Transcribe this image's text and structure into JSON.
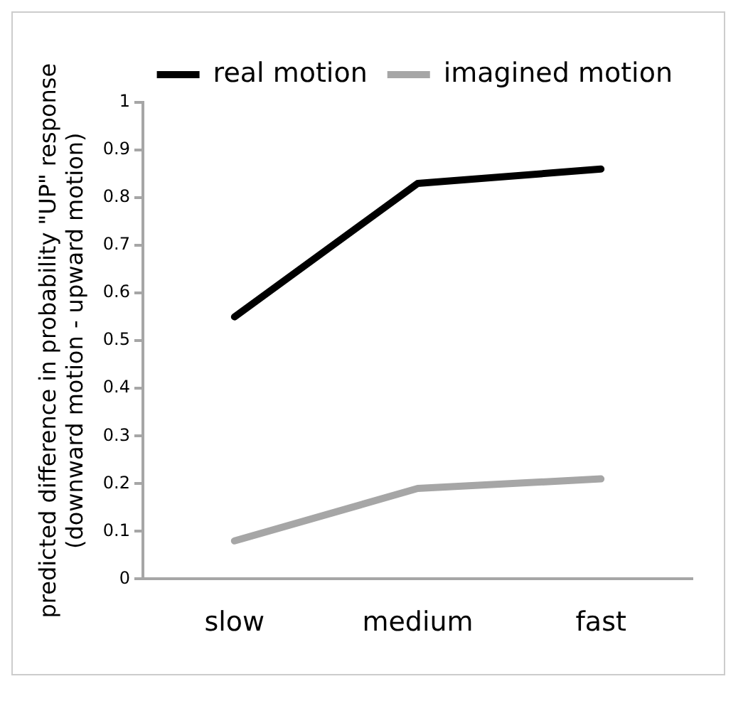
{
  "chart_data": {
    "type": "line",
    "ylabel": "predicted difference in probability \"UP\" response\n(downward motion - upward motion)",
    "categories": [
      "slow",
      "medium",
      "fast"
    ],
    "series": [
      {
        "name": "real motion",
        "color": "#000000",
        "values": [
          0.55,
          0.83,
          0.86
        ]
      },
      {
        "name": "imagined motion",
        "color": "#a6a6a6",
        "values": [
          0.08,
          0.19,
          0.21
        ]
      }
    ],
    "ylim": [
      0,
      1
    ],
    "yticks": [
      0,
      0.1,
      0.2,
      0.3,
      0.4,
      0.5,
      0.6,
      0.7,
      0.8,
      0.9,
      1
    ],
    "grid": false,
    "legend": "top right",
    "marker": "none",
    "line_style": "solid"
  }
}
